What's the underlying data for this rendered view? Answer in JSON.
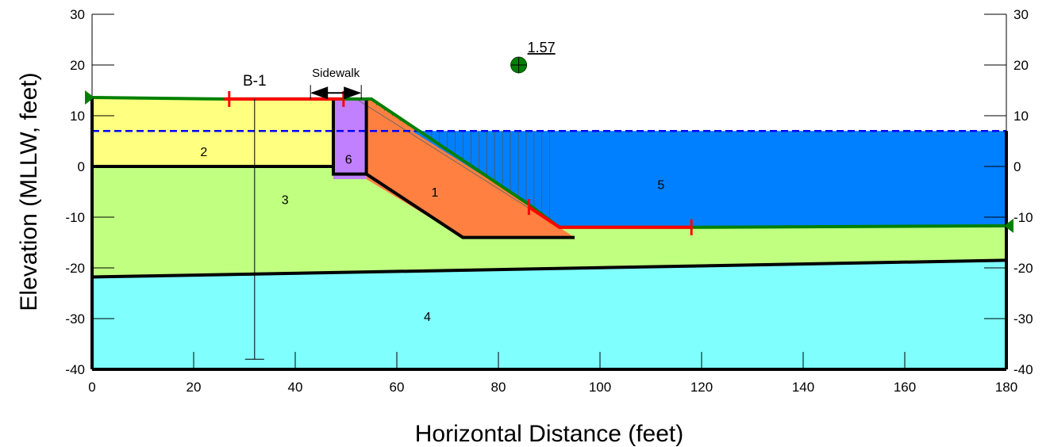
{
  "chart_data": {
    "type": "slope-stability-cross-section",
    "xlabel": "Horizontal Distance (feet)",
    "ylabel": "Elevation (MLLW, feet)",
    "xlim": [
      0,
      180
    ],
    "ylim": [
      -40,
      30
    ],
    "x_ticks": [
      "0",
      "20",
      "40",
      "60",
      "80",
      "100",
      "120",
      "140",
      "160",
      "180"
    ],
    "y_ticks": [
      "-40",
      "-30",
      "-20",
      "-10",
      "0",
      "10",
      "20",
      "30"
    ],
    "regions": [
      {
        "id": "4",
        "label": "4",
        "color": "#80ffff",
        "points": [
          [
            0,
            -40
          ],
          [
            180,
            -40
          ],
          [
            180,
            -18.5
          ],
          [
            0,
            -21.8
          ]
        ],
        "label_at": [
          66,
          -29.5
        ]
      },
      {
        "id": "3",
        "label": "3",
        "color": "#c0ff80",
        "points": [
          [
            0,
            -21.8
          ],
          [
            180,
            -18.5
          ],
          [
            180,
            -12
          ],
          [
            118,
            -12
          ],
          [
            92,
            -12
          ],
          [
            95,
            -14
          ],
          [
            73,
            -14
          ],
          [
            54,
            -2.5
          ],
          [
            47.5,
            -2.5
          ],
          [
            47.5,
            0
          ],
          [
            0,
            0
          ]
        ],
        "label_at": [
          38,
          -6.5
        ]
      },
      {
        "id": "2",
        "label": "2",
        "color": "#ffff80",
        "points": [
          [
            0,
            0
          ],
          [
            47.5,
            0
          ],
          [
            47.5,
            13.2
          ],
          [
            26,
            13.3
          ],
          [
            0,
            13.6
          ]
        ],
        "label_at": [
          22,
          3
        ]
      },
      {
        "id": "6",
        "label": "6",
        "color": "#c080ff",
        "points": [
          [
            47.5,
            -2.5
          ],
          [
            54,
            -2.5
          ],
          [
            54,
            13.3
          ],
          [
            47.5,
            13.3
          ]
        ],
        "label_at": [
          50.5,
          1.5
        ]
      },
      {
        "id": "1",
        "label": "1",
        "color": "#ff8040",
        "points": [
          [
            54,
            13.3
          ],
          [
            55,
            13.3
          ],
          [
            86,
            -7.5
          ],
          [
            92,
            -12
          ],
          [
            95,
            -14
          ],
          [
            73,
            -14
          ],
          [
            54,
            -2.5
          ]
        ],
        "label_at": [
          67.5,
          -5
        ]
      },
      {
        "id": "5",
        "label": "5",
        "color": "#0080ff",
        "points": [
          [
            63,
            7
          ],
          [
            180,
            7
          ],
          [
            180,
            -12
          ],
          [
            118,
            -12
          ],
          [
            92,
            -12
          ],
          [
            86,
            -7.5
          ]
        ],
        "label_at": [
          112,
          -3.5
        ]
      }
    ],
    "water_table": {
      "color": "#0000ff",
      "y": 7,
      "x_range": [
        0,
        180
      ]
    },
    "ground_surface_points": [
      [
        0,
        13.6
      ],
      [
        26,
        13.3
      ],
      [
        47.5,
        13.3
      ],
      [
        55,
        13.3
      ],
      [
        86,
        -7.5
      ],
      [
        92,
        -12
      ],
      [
        118,
        -12
      ],
      [
        180,
        -11.7
      ]
    ],
    "slip_segments": [
      [
        [
          26,
          13.3
        ],
        [
          49,
          13.3
        ]
      ],
      [
        [
          86,
          -8
        ],
        [
          92,
          -12
        ],
        [
          118,
          -12
        ]
      ]
    ],
    "tick_marks_red": [
      [
        27,
        13.3
      ],
      [
        49.5,
        13.3
      ],
      [
        86,
        -8
      ],
      [
        118,
        -12
      ]
    ],
    "slip_circle": {
      "center": [
        84,
        20
      ],
      "factor_of_safety": "1.57"
    },
    "boring": {
      "label": "B-1",
      "x": 32,
      "top": 13.3,
      "bottom": -38
    },
    "sidewalk": {
      "label": "Sidewalk",
      "x_start": 43,
      "x_end": 53
    },
    "colors": {
      "outline": "#000000",
      "surface": "#008000",
      "slip": "#ff0000"
    }
  }
}
